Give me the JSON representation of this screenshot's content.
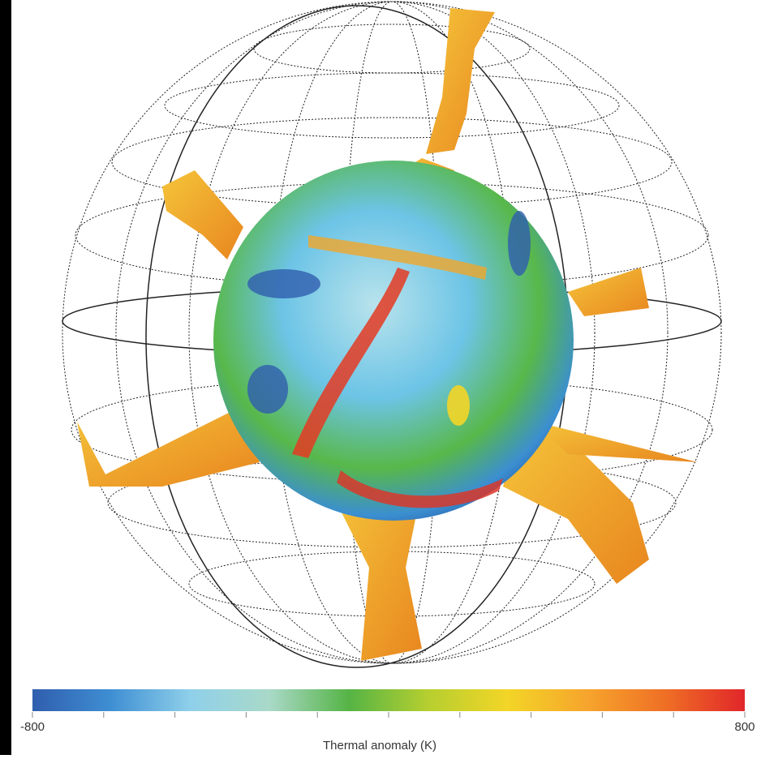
{
  "colorbar": {
    "min": -800,
    "max": 800,
    "min_label": "-800",
    "max_label": "800",
    "label": "Thermal anomaly (K)",
    "ticks": [
      -800,
      -640,
      -480,
      -320,
      -160,
      0,
      160,
      320,
      480,
      640,
      800
    ],
    "colormap": [
      "#2f5eae",
      "#3f8fd3",
      "#8fd0ea",
      "#a9d9c8",
      "#55b445",
      "#b6cf2f",
      "#f3d527",
      "#f6a52c",
      "#ef6f25",
      "#e1262a"
    ]
  }
}
